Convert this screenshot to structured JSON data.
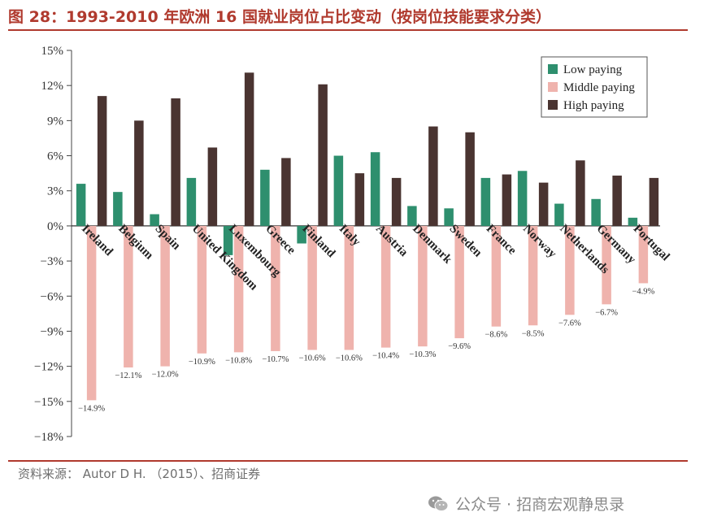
{
  "figure": {
    "title": "图 28：1993-2010 年欧洲 16 国就业岗位占比变动（按岗位技能要求分类）",
    "source": "资料来源：  Autor D H. （2015）、招商证券",
    "watermark": "公众号 · 招商宏观静思录",
    "watermark_icon": "wechat-icon"
  },
  "colors": {
    "low": "#2e8f6e",
    "middle": "#efb3ad",
    "high": "#4a3431",
    "accent": "#b03a2e"
  },
  "chart_data": {
    "type": "bar",
    "title": "",
    "xlabel": "",
    "ylabel": "",
    "ylim": [
      -18,
      15
    ],
    "yticks": [
      15,
      12,
      9,
      6,
      3,
      0,
      -3,
      -6,
      -9,
      -12,
      -15,
      -18
    ],
    "ytick_labels": [
      "15%",
      "12%",
      "9%",
      "6%",
      "3%",
      "0%",
      "−3%",
      "−6%",
      "−9%",
      "−12%",
      "−15%",
      "−18%"
    ],
    "grid": false,
    "legend_position": "top-right",
    "categories": [
      "Ireland",
      "Belgium",
      "Spain",
      "United Kingdom",
      "Luxembourg",
      "Greece",
      "Finland",
      "Italy",
      "Austria",
      "Denmark",
      "Sweden",
      "France",
      "Norway",
      "Netherlands",
      "Germany",
      "Portugal"
    ],
    "series": [
      {
        "name": "Low paying",
        "key": "low",
        "values": [
          3.6,
          2.9,
          1.0,
          4.1,
          -2.5,
          4.8,
          -1.5,
          6.0,
          6.3,
          1.7,
          1.5,
          4.1,
          4.7,
          1.9,
          2.3,
          0.7
        ]
      },
      {
        "name": "Middle paying",
        "key": "middle",
        "values": [
          -14.9,
          -12.1,
          -12.0,
          -10.9,
          -10.8,
          -10.7,
          -10.6,
          -10.6,
          -10.4,
          -10.3,
          -9.6,
          -8.6,
          -8.5,
          -7.6,
          -6.7,
          -4.9
        ]
      },
      {
        "name": "High paying",
        "key": "high",
        "values": [
          11.1,
          9.0,
          10.9,
          6.7,
          13.1,
          5.8,
          12.1,
          4.5,
          4.1,
          8.5,
          8.0,
          4.4,
          3.7,
          5.6,
          4.3,
          4.1
        ]
      }
    ],
    "data_labels": [
      "−14.9%",
      "−12.1%",
      "−12.0%",
      "−10.9%",
      "−10.8%",
      "−10.7%",
      "−10.6%",
      "−10.6%",
      "−10.4%",
      "−10.3%",
      "−9.6%",
      "−8.6%",
      "−8.5%",
      "−7.6%",
      "−6.7%",
      "−4.9%"
    ]
  }
}
